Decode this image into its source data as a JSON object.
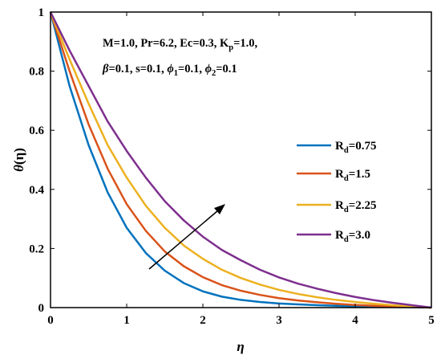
{
  "chart_data": {
    "type": "line",
    "title": "",
    "xlabel": "η",
    "ylabel_main": "θ",
    "ylabel_arg": "(η)",
    "xlim": [
      0,
      5
    ],
    "ylim": [
      0,
      1
    ],
    "xticks": [
      0,
      1,
      2,
      3,
      4,
      5
    ],
    "yticks": [
      0,
      0.2,
      0.4,
      0.6,
      0.8,
      1
    ],
    "xtick_labels": [
      "0",
      "1",
      "2",
      "3",
      "4",
      "5"
    ],
    "ytick_labels": [
      "0",
      "0.2",
      "0.4",
      "0.6",
      "0.8",
      "1"
    ],
    "grid": false,
    "legend_position": "right",
    "annotation": {
      "line1": {
        "a": "M=1.0, Pr=6.2, Ec=0.3, K",
        "a_sub": "p",
        "b": "=1.0,"
      },
      "line2": {
        "beta": "β",
        "b1": "=0.1, s=0.1, ",
        "phi1": "ϕ",
        "phi1_sub": "1",
        "b2": "=0.1, ",
        "phi2": "ϕ",
        "phi2_sub": "2",
        "b3": "=0.1"
      }
    },
    "x": [
      0,
      0.25,
      0.5,
      0.75,
      1.0,
      1.25,
      1.5,
      1.75,
      2.0,
      2.25,
      2.5,
      2.75,
      3.0,
      3.25,
      3.5,
      3.75,
      4.0,
      4.25,
      4.5,
      4.75,
      5.0
    ],
    "series": [
      {
        "name_base": "R",
        "name_sub": "d",
        "name_val": "=0.75",
        "color": "#0072BD",
        "values": [
          1.0,
          0.75,
          0.55,
          0.39,
          0.27,
          0.185,
          0.125,
          0.083,
          0.055,
          0.037,
          0.026,
          0.019,
          0.014,
          0.011,
          0.008,
          0.006,
          0.004,
          0.003,
          0.002,
          0.001,
          0.0
        ]
      },
      {
        "name_base": "R",
        "name_sub": "d",
        "name_val": "=1.5",
        "color": "#D95319",
        "values": [
          1.0,
          0.8,
          0.62,
          0.47,
          0.35,
          0.26,
          0.19,
          0.14,
          0.103,
          0.076,
          0.057,
          0.043,
          0.032,
          0.024,
          0.018,
          0.013,
          0.009,
          0.006,
          0.004,
          0.002,
          0.0
        ]
      },
      {
        "name_base": "R",
        "name_sub": "d",
        "name_val": "=2.25",
        "color": "#EDB120",
        "values": [
          1.0,
          0.84,
          0.69,
          0.55,
          0.44,
          0.345,
          0.27,
          0.21,
          0.165,
          0.128,
          0.1,
          0.078,
          0.06,
          0.046,
          0.035,
          0.026,
          0.019,
          0.013,
          0.008,
          0.004,
          0.0
        ]
      },
      {
        "name_base": "R",
        "name_sub": "d",
        "name_val": "=3.0",
        "color": "#7E2F8E",
        "values": [
          1.0,
          0.87,
          0.75,
          0.63,
          0.53,
          0.44,
          0.36,
          0.295,
          0.24,
          0.195,
          0.16,
          0.128,
          0.102,
          0.081,
          0.064,
          0.049,
          0.036,
          0.025,
          0.016,
          0.008,
          0.0
        ]
      }
    ]
  }
}
